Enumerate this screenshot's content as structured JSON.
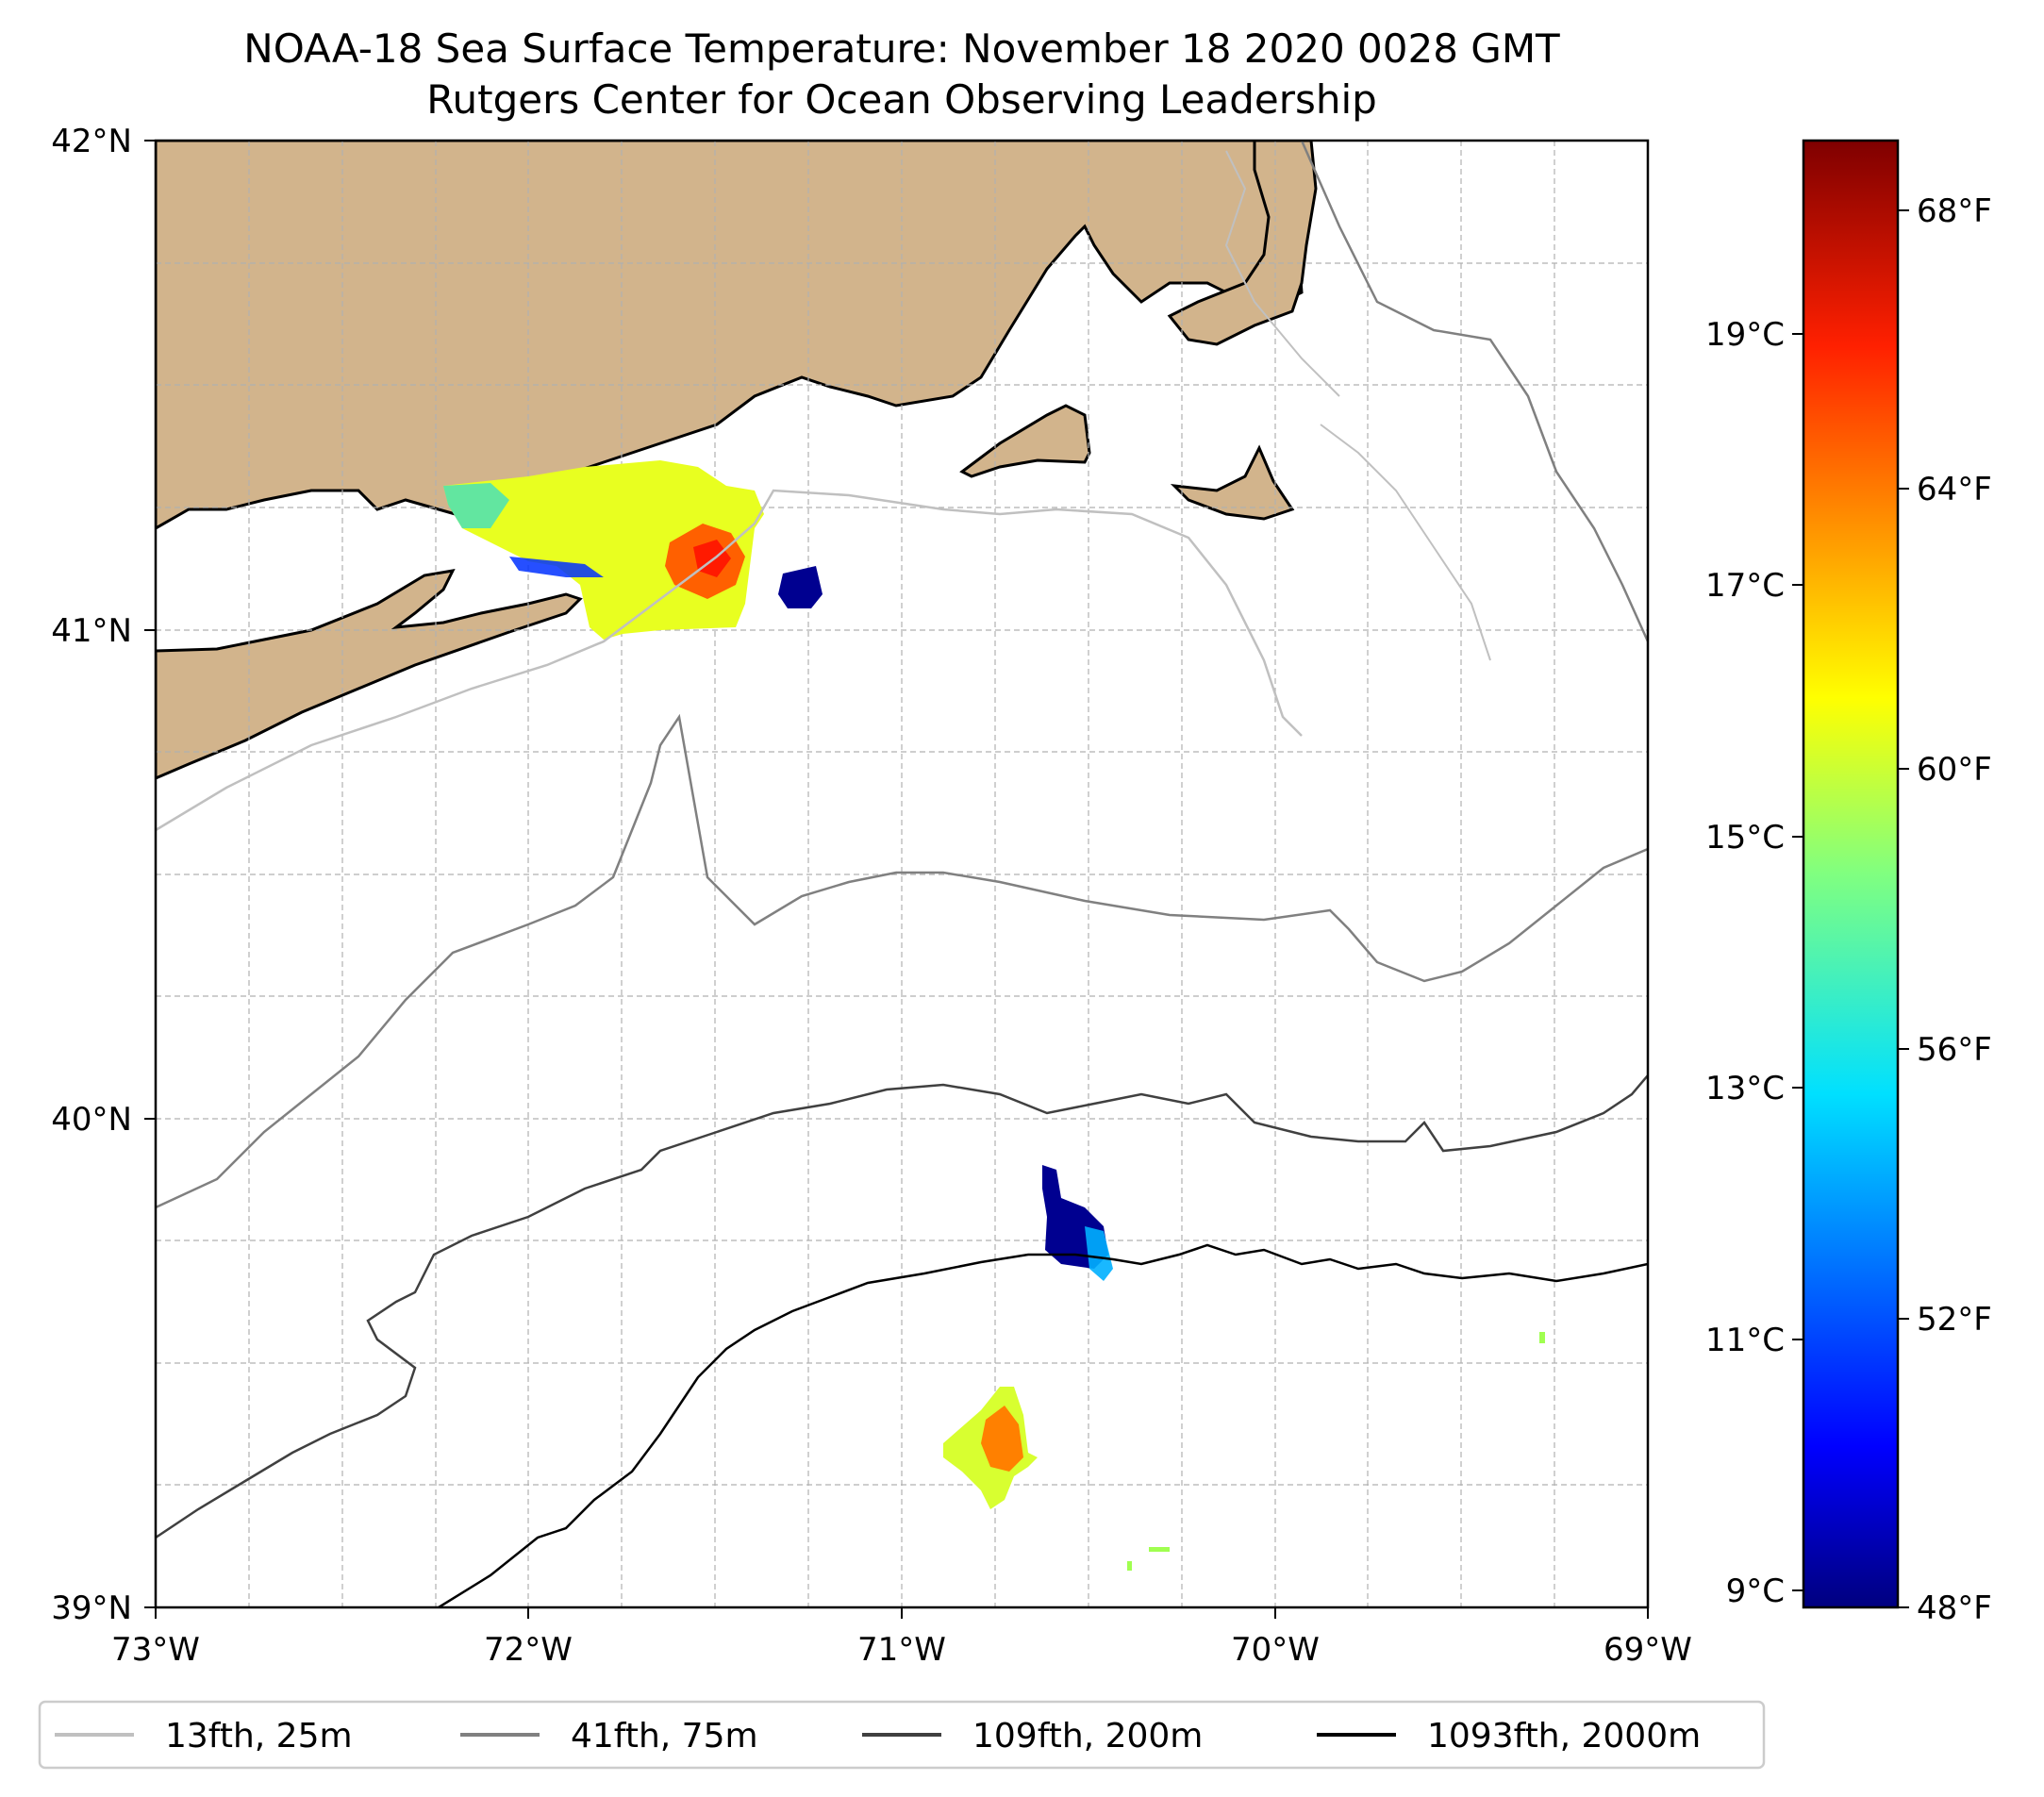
{
  "title": {
    "line1": "NOAA-18 Sea Surface Temperature: November 18 2020 0028 GMT",
    "line2": "Rutgers Center for Ocean Observing Leadership"
  },
  "map": {
    "lon_range": [
      -73,
      -69
    ],
    "lat_range": [
      39,
      42
    ],
    "x_ticks": [
      {
        "value": -73,
        "label": "73°W"
      },
      {
        "value": -72,
        "label": "72°W"
      },
      {
        "value": -71,
        "label": "71°W"
      },
      {
        "value": -70,
        "label": "70°W"
      },
      {
        "value": -69,
        "label": "69°W"
      }
    ],
    "y_ticks": [
      {
        "value": 42,
        "label": "42°N"
      },
      {
        "value": 41,
        "label": "41°N"
      },
      {
        "value": 40,
        "label": "40°N"
      },
      {
        "value": 39,
        "label": "39°N"
      }
    ],
    "land_color": "#d2b48c",
    "grid": true
  },
  "colorbar": {
    "colormap": "jet",
    "range_f": [
      48,
      69
    ],
    "fahrenheit_ticks": [
      {
        "value": 48,
        "label": "48°F"
      },
      {
        "value": 52,
        "label": "52°F"
      },
      {
        "value": 56,
        "label": "56°F"
      },
      {
        "value": 60,
        "label": "60°F"
      },
      {
        "value": 64,
        "label": "64°F"
      },
      {
        "value": 68,
        "label": "68°F"
      }
    ],
    "celsius_ticks": [
      {
        "value": 9,
        "label": "9°C"
      },
      {
        "value": 11,
        "label": "11°C"
      },
      {
        "value": 13,
        "label": "13°C"
      },
      {
        "value": 15,
        "label": "15°C"
      },
      {
        "value": 17,
        "label": "17°C"
      },
      {
        "value": 19,
        "label": "19°C"
      }
    ]
  },
  "legend": {
    "items": [
      {
        "label": "13fth, 25m",
        "color": "#c0c0c0"
      },
      {
        "label": "41fth, 75m",
        "color": "#808080"
      },
      {
        "label": "109fth, 200m",
        "color": "#404040"
      },
      {
        "label": "1093fth, 2000m",
        "color": "#000000"
      }
    ]
  }
}
